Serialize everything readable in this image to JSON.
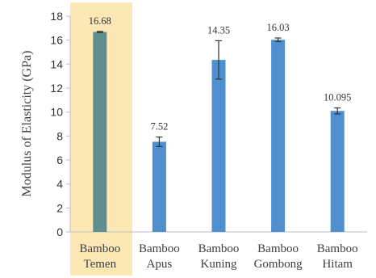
{
  "chart_data": {
    "type": "bar",
    "title": "",
    "xlabel": "",
    "ylabel": "Modulus of Elasticity  (GPa)",
    "ylim": [
      0,
      18
    ],
    "yticks": [
      0,
      2,
      4,
      6,
      8,
      10,
      12,
      14,
      16,
      18
    ],
    "grid": false,
    "categories": [
      [
        "Bamboo",
        "Temen"
      ],
      [
        "Bamboo",
        "Apus"
      ],
      [
        "Bamboo",
        "Kuning"
      ],
      [
        "Bamboo",
        "Gombong"
      ],
      [
        "Bamboo",
        "Hitam"
      ]
    ],
    "values": [
      16.68,
      7.52,
      14.35,
      16.03,
      10.095
    ],
    "value_labels": [
      "16.68",
      "7.52",
      "14.35",
      "16.03",
      "10.095"
    ],
    "error": [
      0.05,
      0.4,
      1.6,
      0.15,
      0.25
    ],
    "highlighted_category_index": 0,
    "colors": {
      "bar": "#4f8fd0",
      "highlighted_bar": "#5e8f8e",
      "highlight_band": "#fbe8b4",
      "error_bar": "#333333",
      "axis": "#bfbfbf"
    }
  }
}
